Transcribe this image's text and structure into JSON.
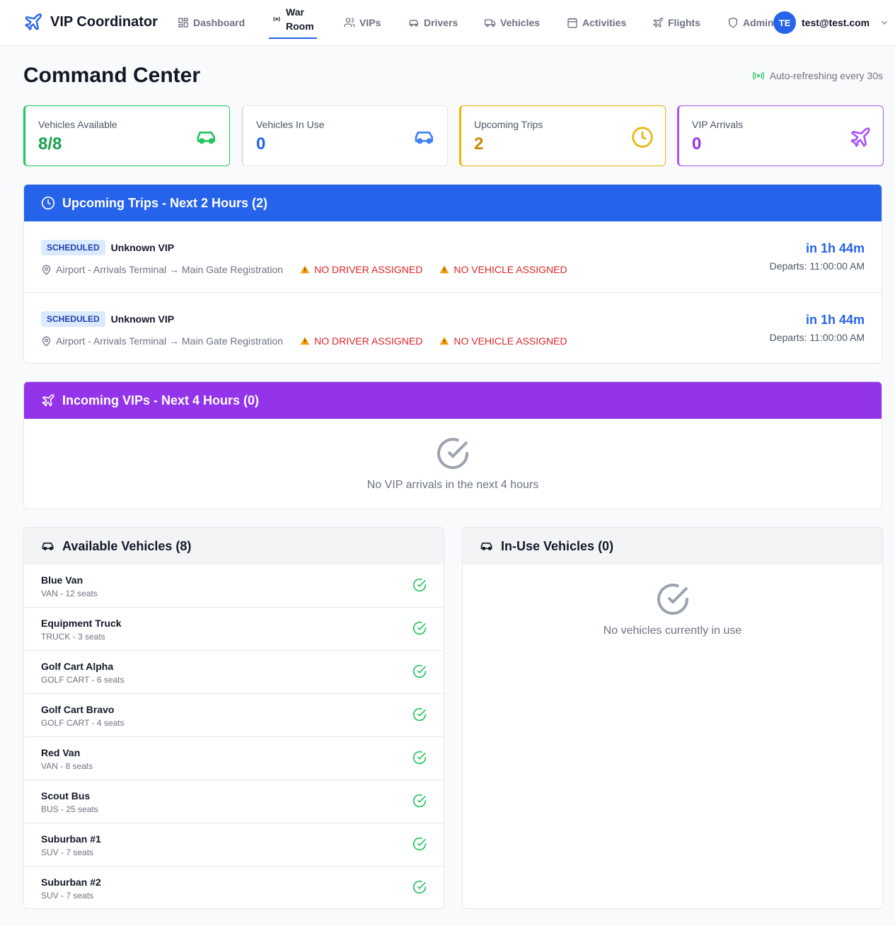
{
  "header": {
    "app_title": "VIP Coordinator",
    "nav": [
      {
        "label": "Dashboard",
        "icon": "grid-icon"
      },
      {
        "label": "War Room",
        "icon": "radio-icon",
        "active": true
      },
      {
        "label": "VIPs",
        "icon": "users-icon"
      },
      {
        "label": "Drivers",
        "icon": "car-icon"
      },
      {
        "label": "Vehicles",
        "icon": "truck-icon"
      },
      {
        "label": "Activities",
        "icon": "calendar-icon"
      },
      {
        "label": "Flights",
        "icon": "plane-icon"
      },
      {
        "label": "Admin",
        "icon": "shield-icon"
      }
    ],
    "user_initials": "TE",
    "user_email": "test@test.com"
  },
  "page": {
    "title": "Command Center",
    "auto_refresh": "Auto-refreshing every 30s"
  },
  "stats": [
    {
      "label": "Vehicles Available",
      "value": "8/8",
      "color": "#16a34a",
      "border": "#22c55e"
    },
    {
      "label": "Vehicles In Use",
      "value": "0",
      "color": "#2563eb",
      "border": "#e5e7eb"
    },
    {
      "label": "Upcoming Trips",
      "value": "2",
      "color": "#ca8a04",
      "border": "#eab308"
    },
    {
      "label": "VIP Arrivals",
      "value": "0",
      "color": "#9333ea",
      "border": "#a855f7"
    }
  ],
  "upcoming": {
    "title": "Upcoming Trips - Next 2 Hours (2)",
    "color": "#2563eb",
    "trips": [
      {
        "status": "SCHEDULED",
        "vip": "Unknown VIP",
        "route": "Airport - Arrivals Terminal → Main Gate Registration",
        "warn_driver": "NO DRIVER ASSIGNED",
        "warn_vehicle": "NO VEHICLE ASSIGNED",
        "eta": "in 1h 44m",
        "departs": "Departs: 11:00:00 AM"
      },
      {
        "status": "SCHEDULED",
        "vip": "Unknown VIP",
        "route": "Airport - Arrivals Terminal → Main Gate Registration",
        "warn_driver": "NO DRIVER ASSIGNED",
        "warn_vehicle": "NO VEHICLE ASSIGNED",
        "eta": "in 1h 44m",
        "departs": "Departs: 11:00:00 AM"
      }
    ]
  },
  "incoming": {
    "title": "Incoming VIPs - Next 4 Hours (0)",
    "color": "#9333ea",
    "empty": "No VIP arrivals in the next 4 hours"
  },
  "available": {
    "title": "Available Vehicles (8)",
    "vehicles": [
      {
        "name": "Blue Van",
        "type": "VAN - 12 seats"
      },
      {
        "name": "Equipment Truck",
        "type": "TRUCK - 3 seats"
      },
      {
        "name": "Golf Cart Alpha",
        "type": "GOLF CART - 6 seats"
      },
      {
        "name": "Golf Cart Bravo",
        "type": "GOLF CART - 4 seats"
      },
      {
        "name": "Red Van",
        "type": "VAN - 8 seats"
      },
      {
        "name": "Scout Bus",
        "type": "BUS - 25 seats"
      },
      {
        "name": "Suburban #1",
        "type": "SUV - 7 seats"
      },
      {
        "name": "Suburban #2",
        "type": "SUV - 7 seats"
      }
    ]
  },
  "in_use": {
    "title": "In-Use Vehicles (0)",
    "empty": "No vehicles currently in use"
  }
}
